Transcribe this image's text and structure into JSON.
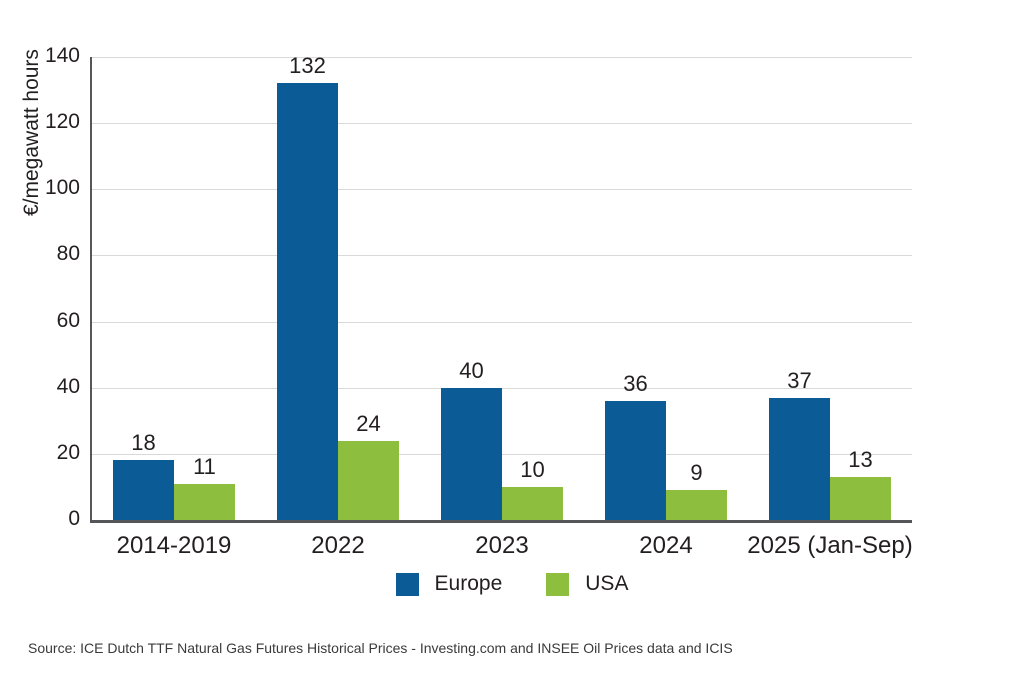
{
  "chart_data": {
    "type": "bar",
    "title": "",
    "categories": [
      "2014-2019",
      "2022",
      "2023",
      "2024",
      "2025 (Jan-Sep)"
    ],
    "series": [
      {
        "name": "Europe",
        "color": "#0b5c96",
        "values": [
          18,
          132,
          40,
          36,
          37
        ]
      },
      {
        "name": "USA",
        "color": "#8ebe3e",
        "values": [
          11,
          24,
          10,
          9,
          13
        ]
      }
    ],
    "xlabel": "",
    "ylabel": "€/megawatt hours",
    "ylim": [
      0,
      140
    ],
    "yticks": [
      0,
      20,
      40,
      60,
      80,
      100,
      120,
      140
    ],
    "grid": "horizontal",
    "legend_position": "bottom",
    "value_labels": true
  },
  "source_note": "Source: ICE Dutch TTF Natural Gas Futures Historical Prices - Investing.com and INSEE Oil Prices data and ICIS",
  "colors": {
    "europe": "#0b5c96",
    "usa": "#8ebe3e",
    "gridline": "#d9d9d9",
    "axis": "#55565a",
    "text": "#231f20"
  }
}
